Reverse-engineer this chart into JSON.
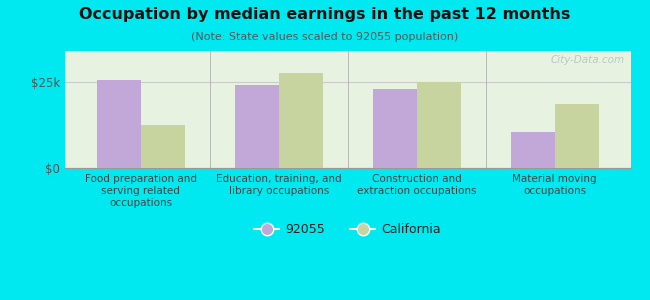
{
  "title": "Occupation by median earnings in the past 12 months",
  "subtitle": "(Note: State values scaled to 92055 population)",
  "categories": [
    "Food preparation and\nserving related\noccupations",
    "Education, training, and\nlibrary occupations",
    "Construction and\nextraction occupations",
    "Material moving\noccupations"
  ],
  "values_92055": [
    25500,
    24000,
    23000,
    10500
  ],
  "values_california": [
    12500,
    27500,
    25000,
    18500
  ],
  "color_92055": "#c2a8d8",
  "color_california": "#c8d4a0",
  "bar_width": 0.32,
  "ylim": [
    0,
    34000
  ],
  "yticks": [
    0,
    25000
  ],
  "ytick_labels": [
    "$0",
    "$25k"
  ],
  "background_outer": "#00e8f0",
  "background_inner": "#e8f2e0",
  "legend_labels": [
    "92055",
    "California"
  ],
  "watermark": "City-Data.com",
  "divider_color": "#aaaaaa",
  "grid_color": "#cccccc"
}
